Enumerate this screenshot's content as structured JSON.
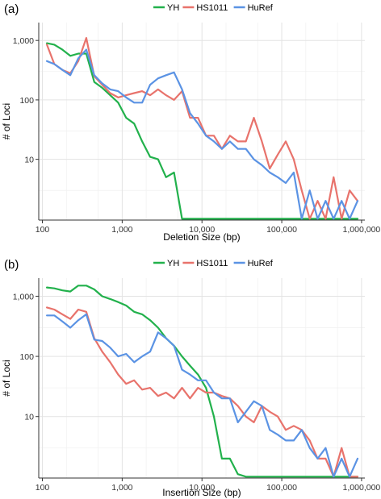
{
  "chart_data": [
    {
      "type": "line",
      "panel_label": "(a)",
      "xlabel": "Deletion Size (bp)",
      "ylabel": "# of Loci",
      "x_scale": "log",
      "y_scale": "log",
      "xlim": [
        90,
        1100000
      ],
      "ylim": [
        0.95,
        2000
      ],
      "x_ticks": [
        100,
        1000,
        10000,
        100000,
        1000000
      ],
      "x_tick_labels": [
        "100",
        "1,000",
        "10,000",
        "100,000",
        "1,000,000"
      ],
      "y_ticks": [
        10,
        100,
        1000
      ],
      "y_tick_labels": [
        "10",
        "100",
        "1,000"
      ],
      "grid": true,
      "legend_position": "top-center",
      "series": [
        {
          "name": "YH",
          "color": "#22b14c",
          "x": [
            114,
            141,
            178,
            224,
            282,
            355,
            447,
            562,
            708,
            891,
            1122,
            1413,
            1778,
            2239,
            2818,
            3548,
            4467,
            5623,
            7079,
            8913,
            11220,
            14125,
            17783,
            22387,
            28184,
            35481,
            44668,
            56234,
            70795,
            89125,
            112202,
            141254,
            177828,
            223872,
            281838,
            354813,
            446684,
            562341,
            707946,
            891251
          ],
          "y": [
            900,
            850,
            700,
            550,
            600,
            600,
            200,
            160,
            120,
            90,
            50,
            40,
            20,
            11,
            10,
            5,
            6,
            1,
            1,
            1,
            1,
            1,
            1,
            1,
            1,
            1,
            1,
            1,
            1,
            1,
            1,
            1,
            1,
            1,
            1,
            1,
            1,
            1,
            1,
            1
          ]
        },
        {
          "name": "HS1011",
          "color": "#e8736c",
          "x": [
            114,
            141,
            178,
            224,
            282,
            355,
            447,
            562,
            708,
            891,
            1122,
            1413,
            1778,
            2239,
            2818,
            3548,
            4467,
            5623,
            7079,
            8913,
            11220,
            14125,
            17783,
            22387,
            28184,
            35481,
            44668,
            56234,
            70795,
            89125,
            112202,
            141254,
            177828,
            223872,
            281838,
            354813,
            446684,
            562341,
            707946,
            891251
          ],
          "y": [
            850,
            400,
            320,
            280,
            450,
            1100,
            250,
            180,
            130,
            110,
            120,
            130,
            140,
            120,
            150,
            120,
            100,
            140,
            50,
            50,
            25,
            25,
            15,
            25,
            20,
            20,
            50,
            20,
            7,
            12,
            20,
            10,
            3,
            1,
            2,
            1,
            5,
            1,
            3,
            2
          ]
        },
        {
          "name": "HuRef",
          "color": "#5b93e4",
          "x": [
            114,
            141,
            178,
            224,
            282,
            355,
            447,
            562,
            708,
            891,
            1122,
            1413,
            1778,
            2239,
            2818,
            3548,
            4467,
            5623,
            7079,
            8913,
            11220,
            14125,
            17783,
            22387,
            28184,
            35481,
            44668,
            56234,
            70795,
            89125,
            112202,
            141254,
            177828,
            223872,
            281838,
            354813,
            446684,
            562341,
            707946,
            891251
          ],
          "y": [
            450,
            400,
            320,
            260,
            500,
            700,
            260,
            190,
            150,
            140,
            110,
            90,
            90,
            180,
            230,
            260,
            290,
            150,
            60,
            40,
            25,
            20,
            15,
            20,
            15,
            15,
            10,
            8,
            6,
            5,
            4,
            6,
            1,
            3,
            1,
            2,
            1,
            2,
            1,
            2
          ]
        }
      ]
    },
    {
      "type": "line",
      "panel_label": "(b)",
      "xlabel": "Insertion Size (bp)",
      "ylabel": "# of Loci",
      "x_scale": "log",
      "y_scale": "log",
      "xlim": [
        90,
        1100000
      ],
      "ylim": [
        0.95,
        2000
      ],
      "x_ticks": [
        100,
        1000,
        10000,
        100000,
        1000000
      ],
      "x_tick_labels": [
        "100",
        "1,000",
        "10,000",
        "100,000",
        "1,000,000"
      ],
      "y_ticks": [
        10,
        100,
        1000
      ],
      "y_tick_labels": [
        "10",
        "100",
        "1,000"
      ],
      "grid": true,
      "legend_position": "top-center",
      "series": [
        {
          "name": "YH",
          "color": "#22b14c",
          "x": [
            114,
            141,
            178,
            224,
            282,
            355,
            447,
            562,
            708,
            891,
            1122,
            1413,
            1778,
            2239,
            2818,
            3548,
            4467,
            5623,
            7079,
            8913,
            11220,
            14125,
            17783,
            22387,
            28184,
            35481,
            44668,
            56234,
            70795,
            89125,
            112202,
            141254,
            177828,
            223872,
            281838,
            354813,
            446684,
            562341,
            707946,
            891251
          ],
          "y": [
            1400,
            1350,
            1250,
            1200,
            1500,
            1500,
            1300,
            1000,
            900,
            800,
            700,
            550,
            500,
            400,
            300,
            200,
            150,
            100,
            70,
            50,
            30,
            10,
            2,
            2,
            1.1,
            1,
            1,
            1,
            1,
            1,
            1,
            1,
            1,
            1,
            1,
            1,
            1,
            1,
            1,
            1
          ]
        },
        {
          "name": "HS1011",
          "color": "#e8736c",
          "x": [
            114,
            141,
            178,
            224,
            282,
            355,
            447,
            562,
            708,
            891,
            1122,
            1413,
            1778,
            2239,
            2818,
            3548,
            4467,
            5623,
            7079,
            8913,
            11220,
            14125,
            17783,
            22387,
            28184,
            35481,
            44668,
            56234,
            70795,
            89125,
            112202,
            141254,
            177828,
            223872,
            281838,
            354813,
            446684,
            562341,
            707946,
            891251
          ],
          "y": [
            650,
            600,
            500,
            420,
            600,
            550,
            200,
            120,
            80,
            50,
            35,
            40,
            28,
            30,
            22,
            25,
            20,
            30,
            20,
            30,
            25,
            25,
            22,
            20,
            15,
            10,
            8,
            15,
            12,
            10,
            6,
            7,
            6,
            4,
            2,
            2,
            1,
            3,
            1,
            1
          ]
        },
        {
          "name": "HuRef",
          "color": "#5b93e4",
          "x": [
            114,
            141,
            178,
            224,
            282,
            355,
            447,
            562,
            708,
            891,
            1122,
            1413,
            1778,
            2239,
            2818,
            3548,
            4467,
            5623,
            7079,
            8913,
            11220,
            14125,
            17783,
            22387,
            28184,
            35481,
            44668,
            56234,
            70795,
            89125,
            112202,
            141254,
            177828,
            223872,
            281838,
            354813,
            446684,
            562341,
            707946,
            891251
          ],
          "y": [
            480,
            480,
            380,
            300,
            400,
            500,
            190,
            180,
            140,
            100,
            110,
            80,
            100,
            120,
            250,
            200,
            150,
            60,
            50,
            40,
            40,
            25,
            20,
            20,
            8,
            12,
            18,
            15,
            6,
            5,
            4,
            4,
            6,
            3,
            2,
            3,
            1,
            2,
            1,
            2
          ]
        }
      ]
    }
  ]
}
